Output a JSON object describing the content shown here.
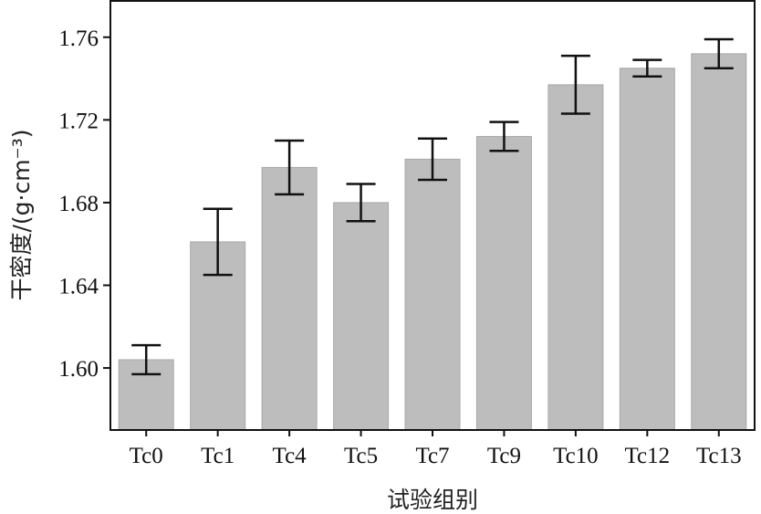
{
  "chart_data": {
    "type": "bar",
    "categories": [
      "Tc0",
      "Tc1",
      "Tc4",
      "Tc5",
      "Tc7",
      "Tc9",
      "Tc10",
      "Tc12",
      "Tc13"
    ],
    "values": [
      1.604,
      1.661,
      1.697,
      1.68,
      1.701,
      1.712,
      1.737,
      1.745,
      1.752
    ],
    "error": [
      0.007,
      0.016,
      0.013,
      0.009,
      0.01,
      0.007,
      0.014,
      0.004,
      0.007
    ],
    "xlabel": "试验组别",
    "ylabel": "干密度/(g·cm⁻³)",
    "ylim": [
      1.57,
      1.778
    ],
    "yticks": [
      "1.60",
      "1.64",
      "1.68",
      "1.72",
      "1.76"
    ],
    "grid": false,
    "colors": {
      "bar": "#bdbdbd",
      "bar_stroke": "#a9a9a9",
      "error": "#111111",
      "axis": "#111111"
    }
  }
}
